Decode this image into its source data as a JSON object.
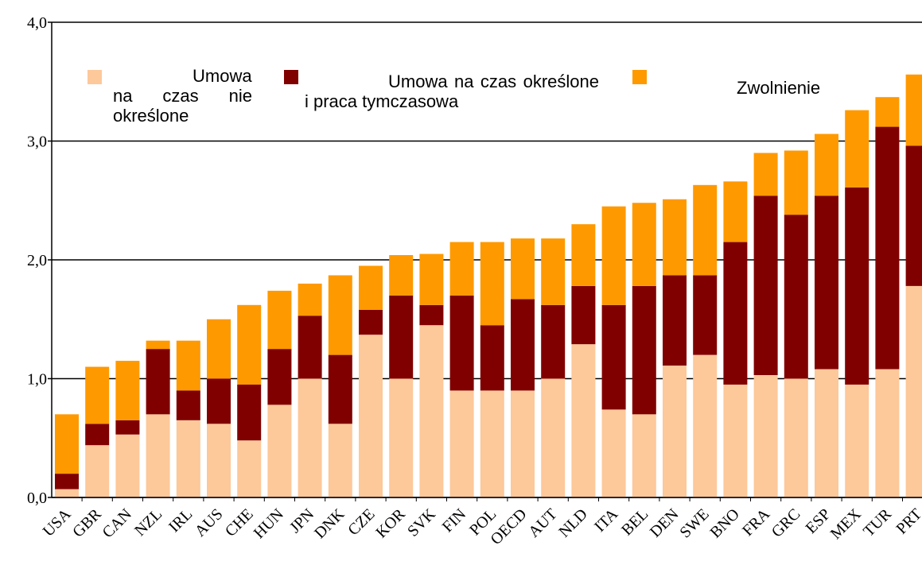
{
  "chart_data": {
    "type": "bar",
    "stacked": true,
    "categories": [
      "USA",
      "GBR",
      "CAN",
      "NZL",
      "IRL",
      "AUS",
      "CHE",
      "HUN",
      "JPN",
      "DNK",
      "CZE",
      "KOR",
      "SVK",
      "FIN",
      "POL",
      "OECD",
      "AUT",
      "NLD",
      "ITA",
      "BEL",
      "DEN",
      "SWE",
      "BNO",
      "FRA",
      "GRC",
      "ESP",
      "MEX",
      "TUR",
      "PRT"
    ],
    "series": [
      {
        "name": "Umowa na czas nie określone",
        "color": "#fdc89a",
        "values": [
          0.07,
          0.44,
          0.53,
          0.7,
          0.65,
          0.62,
          0.48,
          0.78,
          1.0,
          0.62,
          1.37,
          1.0,
          1.45,
          0.9,
          0.9,
          0.9,
          1.0,
          1.29,
          0.74,
          0.7,
          1.11,
          1.2,
          0.95,
          1.03,
          1.0,
          1.08,
          0.95,
          1.08,
          1.78
        ]
      },
      {
        "name": "Umowa na czas określone i praca tymczasowa",
        "color": "#800000",
        "values": [
          0.13,
          0.18,
          0.12,
          0.55,
          0.25,
          0.38,
          0.47,
          0.47,
          0.53,
          0.58,
          0.21,
          0.7,
          0.17,
          0.8,
          0.55,
          0.77,
          0.62,
          0.49,
          0.88,
          1.08,
          0.76,
          0.67,
          1.2,
          1.51,
          1.38,
          1.46,
          1.66,
          2.04,
          1.18
        ]
      },
      {
        "name": "Zwolnienie",
        "color": "#ff9900",
        "values": [
          0.5,
          0.48,
          0.5,
          0.07,
          0.42,
          0.5,
          0.67,
          0.49,
          0.27,
          0.67,
          0.37,
          0.34,
          0.43,
          0.45,
          0.7,
          0.51,
          0.56,
          0.52,
          0.83,
          0.7,
          0.64,
          0.76,
          0.51,
          0.36,
          0.54,
          0.52,
          0.65,
          0.25,
          0.6
        ]
      }
    ],
    "ylim": [
      0,
      4
    ],
    "yticks": [
      {
        "value": 0,
        "label": "0,0"
      },
      {
        "value": 1,
        "label": "1,0"
      },
      {
        "value": 2,
        "label": "2,0"
      },
      {
        "value": 3,
        "label": "3,0"
      },
      {
        "value": 4,
        "label": "4,0"
      }
    ],
    "grid": true
  }
}
